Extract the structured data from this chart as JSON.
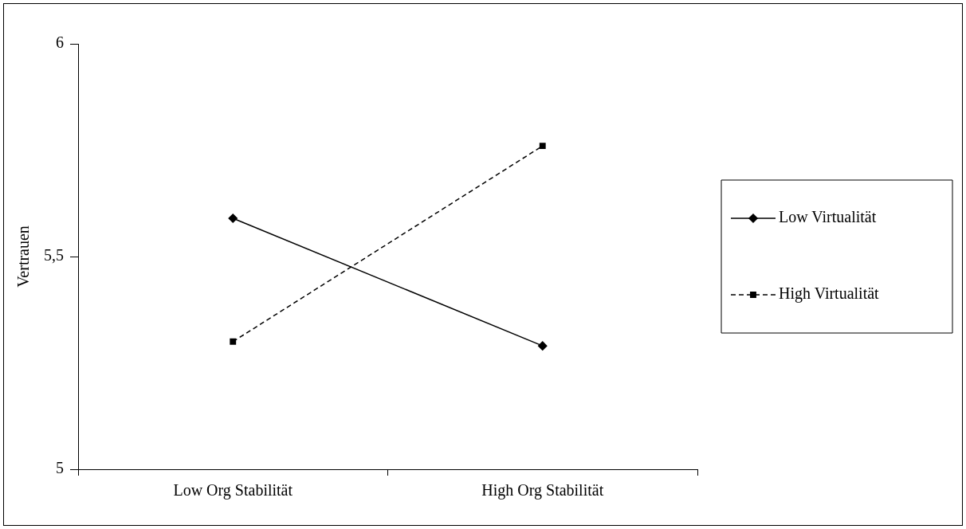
{
  "chart_data": {
    "type": "line",
    "ylabel": "Vertrauen",
    "categories": [
      "Low Org Stabilität",
      "High Org Stabilität"
    ],
    "series": [
      {
        "name": "Low Virtualität",
        "color": "#000000",
        "values": [
          5.59,
          5.29
        ],
        "marker": "diamond",
        "line_style": "solid"
      },
      {
        "name": "High Virtualität",
        "color": "#000000",
        "values": [
          5.3,
          5.76
        ],
        "marker": "square",
        "line_style": "dashed"
      }
    ],
    "ylim": [
      5,
      6
    ],
    "yticks": [
      5,
      {
        "value": 5.5,
        "label": "5,5"
      },
      6
    ],
    "grid": false,
    "legend": "right"
  }
}
